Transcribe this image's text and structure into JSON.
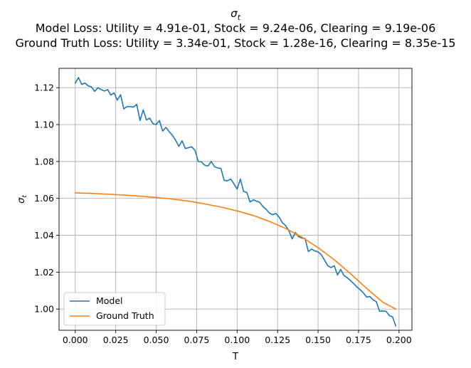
{
  "chart_data": {
    "type": "line",
    "title": "σ",
    "title_subscript": "t",
    "subtitle_lines": [
      "Model Loss: Utility = 4.91e-01, Stock = 9.24e-06, Clearing = 9.19e-06",
      "Ground Truth Loss: Utility = 3.34e-01, Stock = 1.28e-16, Clearing = 8.35e-15"
    ],
    "xlabel": "T",
    "ylabel": "σ",
    "ylabel_subscript": "t",
    "xlim": [
      -0.01,
      0.208
    ],
    "ylim": [
      0.9885,
      1.1305
    ],
    "x_ticks": [
      0.0,
      0.025,
      0.05,
      0.075,
      0.1,
      0.125,
      0.15,
      0.175,
      0.2
    ],
    "x_tick_labels": [
      "0.000",
      "0.025",
      "0.050",
      "0.075",
      "0.100",
      "0.125",
      "0.150",
      "0.175",
      "0.200"
    ],
    "y_ticks": [
      1.0,
      1.02,
      1.04,
      1.06,
      1.08,
      1.1,
      1.12
    ],
    "y_tick_labels": [
      "1.00",
      "1.02",
      "1.04",
      "1.06",
      "1.08",
      "1.10",
      "1.12"
    ],
    "grid": true,
    "legend_position": "lower-left",
    "series": [
      {
        "name": "Model",
        "color": "#1f77b4",
        "x": [
          0.0,
          0.002,
          0.004,
          0.006,
          0.008,
          0.01,
          0.012,
          0.014,
          0.016,
          0.018,
          0.02,
          0.022,
          0.024,
          0.026,
          0.028,
          0.03,
          0.032,
          0.034,
          0.036,
          0.038,
          0.04,
          0.042,
          0.044,
          0.046,
          0.048,
          0.05,
          0.052,
          0.054,
          0.056,
          0.058,
          0.06,
          0.062,
          0.064,
          0.066,
          0.068,
          0.07,
          0.072,
          0.074,
          0.076,
          0.078,
          0.08,
          0.082,
          0.084,
          0.086,
          0.088,
          0.09,
          0.092,
          0.094,
          0.096,
          0.098,
          0.1,
          0.102,
          0.104,
          0.106,
          0.108,
          0.11,
          0.112,
          0.114,
          0.116,
          0.118,
          0.12,
          0.122,
          0.124,
          0.126,
          0.128,
          0.13,
          0.132,
          0.134,
          0.136,
          0.138,
          0.14,
          0.142,
          0.144,
          0.146,
          0.148,
          0.15,
          0.152,
          0.154,
          0.156,
          0.158,
          0.16,
          0.162,
          0.164,
          0.166,
          0.168,
          0.17,
          0.172,
          0.174,
          0.176,
          0.178,
          0.18,
          0.182,
          0.184,
          0.186,
          0.188,
          0.19,
          0.192,
          0.194,
          0.196,
          0.198
        ],
        "y": [
          1.1225,
          1.1255,
          1.1218,
          1.1225,
          1.121,
          1.1205,
          1.118,
          1.12,
          1.119,
          1.1182,
          1.119,
          1.116,
          1.1172,
          1.1132,
          1.1162,
          1.1085,
          1.1098,
          1.1098,
          1.1095,
          1.111,
          1.1022,
          1.108,
          1.1025,
          1.1035,
          1.1005,
          1.1,
          1.1022,
          1.0965,
          1.0985,
          1.0962,
          1.0942,
          1.0915,
          1.0882,
          1.0912,
          1.087,
          1.0875,
          1.088,
          1.086,
          1.08,
          1.0798,
          1.078,
          1.0775,
          1.08,
          1.0772,
          1.0765,
          1.0762,
          1.0698,
          1.0695,
          1.0705,
          1.068,
          1.065,
          1.0705,
          1.0638,
          1.0632,
          1.058,
          1.0592,
          1.0585,
          1.0578,
          1.0555,
          1.054,
          1.052,
          1.0512,
          1.0518,
          1.0498,
          1.0468,
          1.0452,
          1.0425,
          1.038,
          1.0415,
          1.0392,
          1.0385,
          1.0382,
          1.0312,
          1.0325,
          1.0315,
          1.031,
          1.0295,
          1.0265,
          1.0235,
          1.0225,
          1.0235,
          1.0185,
          1.0215,
          1.0182,
          1.017,
          1.0155,
          1.0138,
          1.012,
          1.0105,
          1.0088,
          1.0065,
          1.0068,
          1.005,
          1.004,
          0.9988,
          0.999,
          0.9988,
          0.9965,
          0.9958,
          0.9908
        ]
      },
      {
        "name": "Ground Truth",
        "color": "#ff7f0e",
        "x": [
          0.0,
          0.01,
          0.02,
          0.03,
          0.04,
          0.05,
          0.06,
          0.07,
          0.08,
          0.09,
          0.1,
          0.11,
          0.12,
          0.13,
          0.14,
          0.15,
          0.16,
          0.17,
          0.18,
          0.19,
          0.198
        ],
        "y": [
          1.063,
          1.0627,
          1.0623,
          1.0618,
          1.0612,
          1.0605,
          1.0596,
          1.0585,
          1.057,
          1.0553,
          1.0532,
          1.0507,
          1.0475,
          1.0437,
          1.039,
          1.0333,
          1.0267,
          1.0192,
          1.0112,
          1.0037,
          1.0
        ]
      }
    ]
  }
}
